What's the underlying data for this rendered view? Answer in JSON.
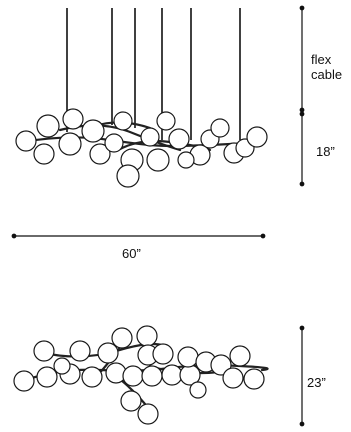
{
  "labels": {
    "cable_line1": "flex",
    "cable_line2": "cable",
    "height_elevation": "18”",
    "width": "60”",
    "height_plan": "23”"
  },
  "colors": {
    "line": "#111111",
    "globe_fill": "#ffffff",
    "globe_stroke": "#1a1a1a"
  }
}
